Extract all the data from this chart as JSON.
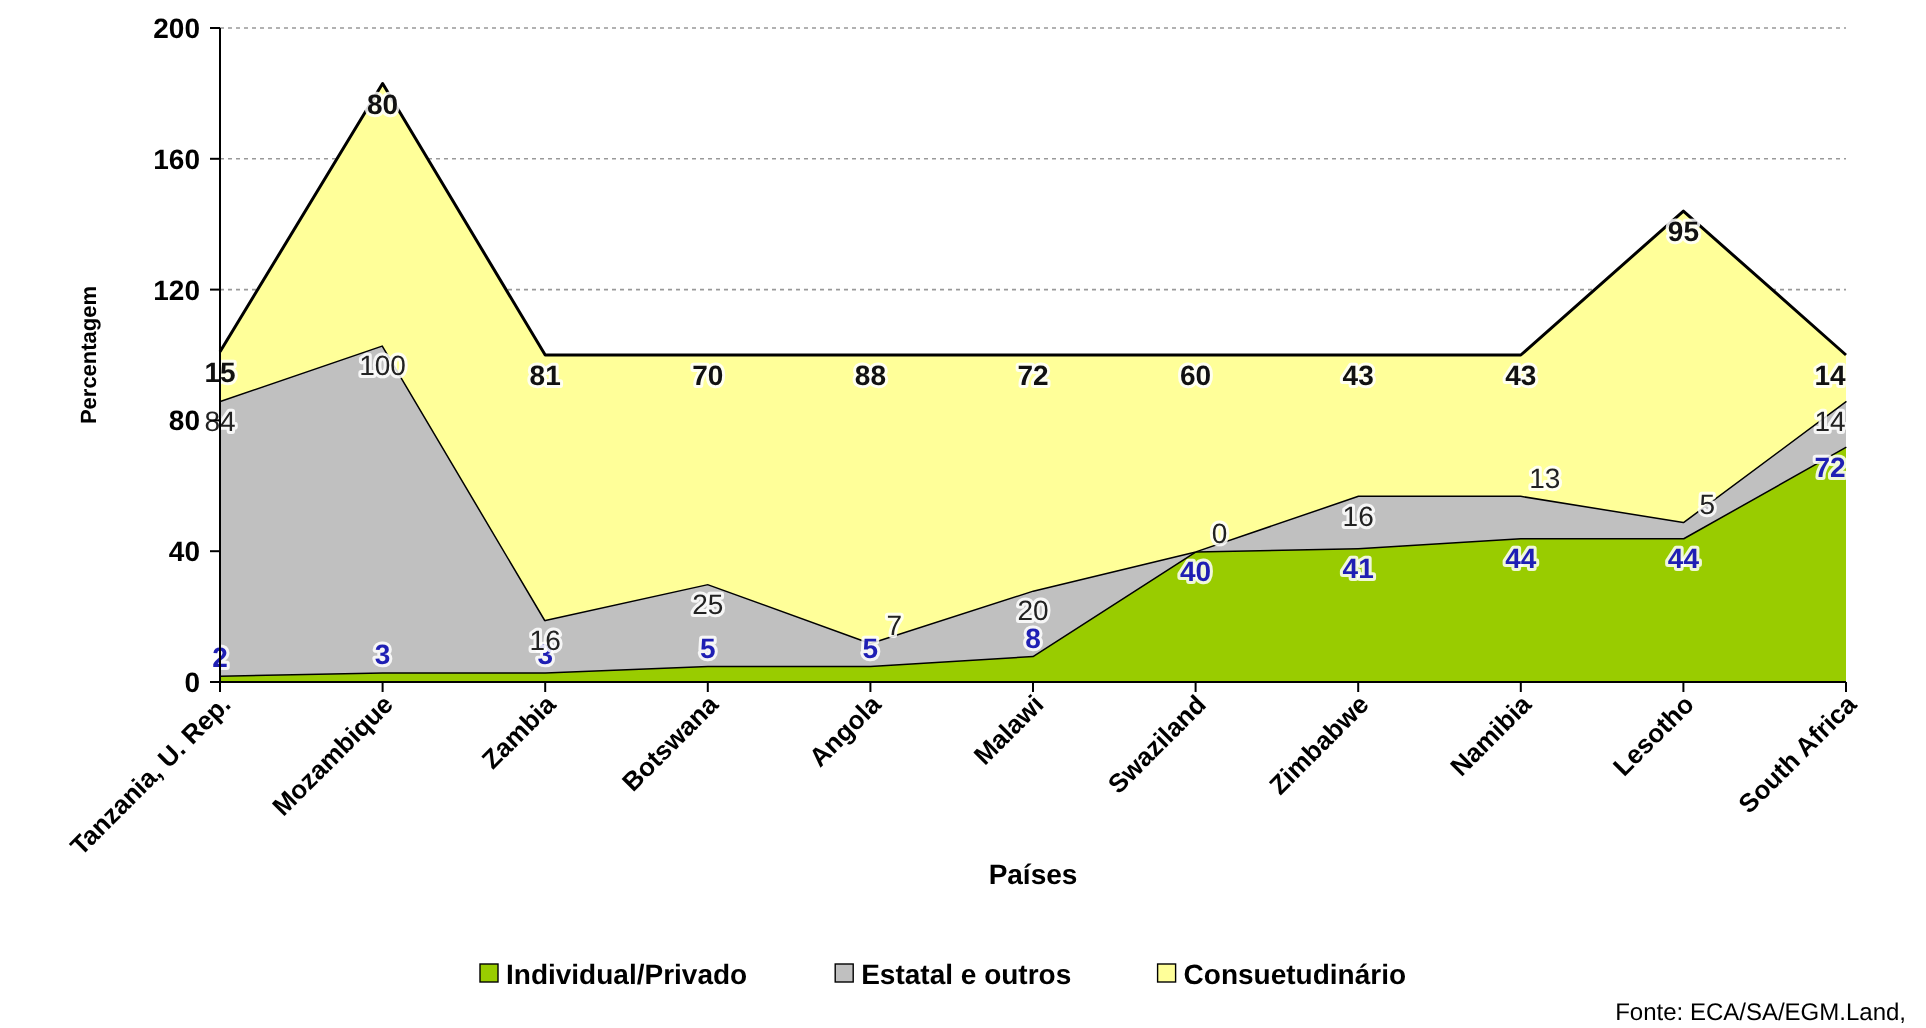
{
  "chart_data": {
    "type": "area",
    "stacked": true,
    "xlabel": "Países",
    "ylabel": "Percentagem",
    "categories": [
      "Tanzania, U. Rep.",
      "Mozambique",
      "Zambia",
      "Botswana",
      "Angola",
      "Malawi",
      "Swaziland",
      "Zimbabwe",
      "Namibia",
      "Lesotho",
      "South Africa"
    ],
    "series": [
      {
        "name": "Individual/Privado",
        "color": "#99cc00",
        "values": [
          2,
          3,
          3,
          5,
          5,
          8,
          40,
          41,
          44,
          44,
          72
        ]
      },
      {
        "name": "Estatal e outros",
        "color": "#c0c0c0",
        "values": [
          84,
          100,
          16,
          25,
          7,
          20,
          0,
          16,
          13,
          5,
          14
        ]
      },
      {
        "name": "Consuetudinário",
        "color": "#ffff99",
        "values": [
          15,
          80,
          81,
          70,
          88,
          72,
          60,
          43,
          43,
          95,
          14
        ]
      }
    ],
    "ylim": [
      0,
      200
    ],
    "yticks": [
      0,
      40,
      80,
      120,
      160,
      200
    ],
    "grid": "y",
    "legend": "bottom",
    "data_labels": true,
    "annotations": [
      "Fonte: ECA/SA/EGM.Land,"
    ]
  }
}
